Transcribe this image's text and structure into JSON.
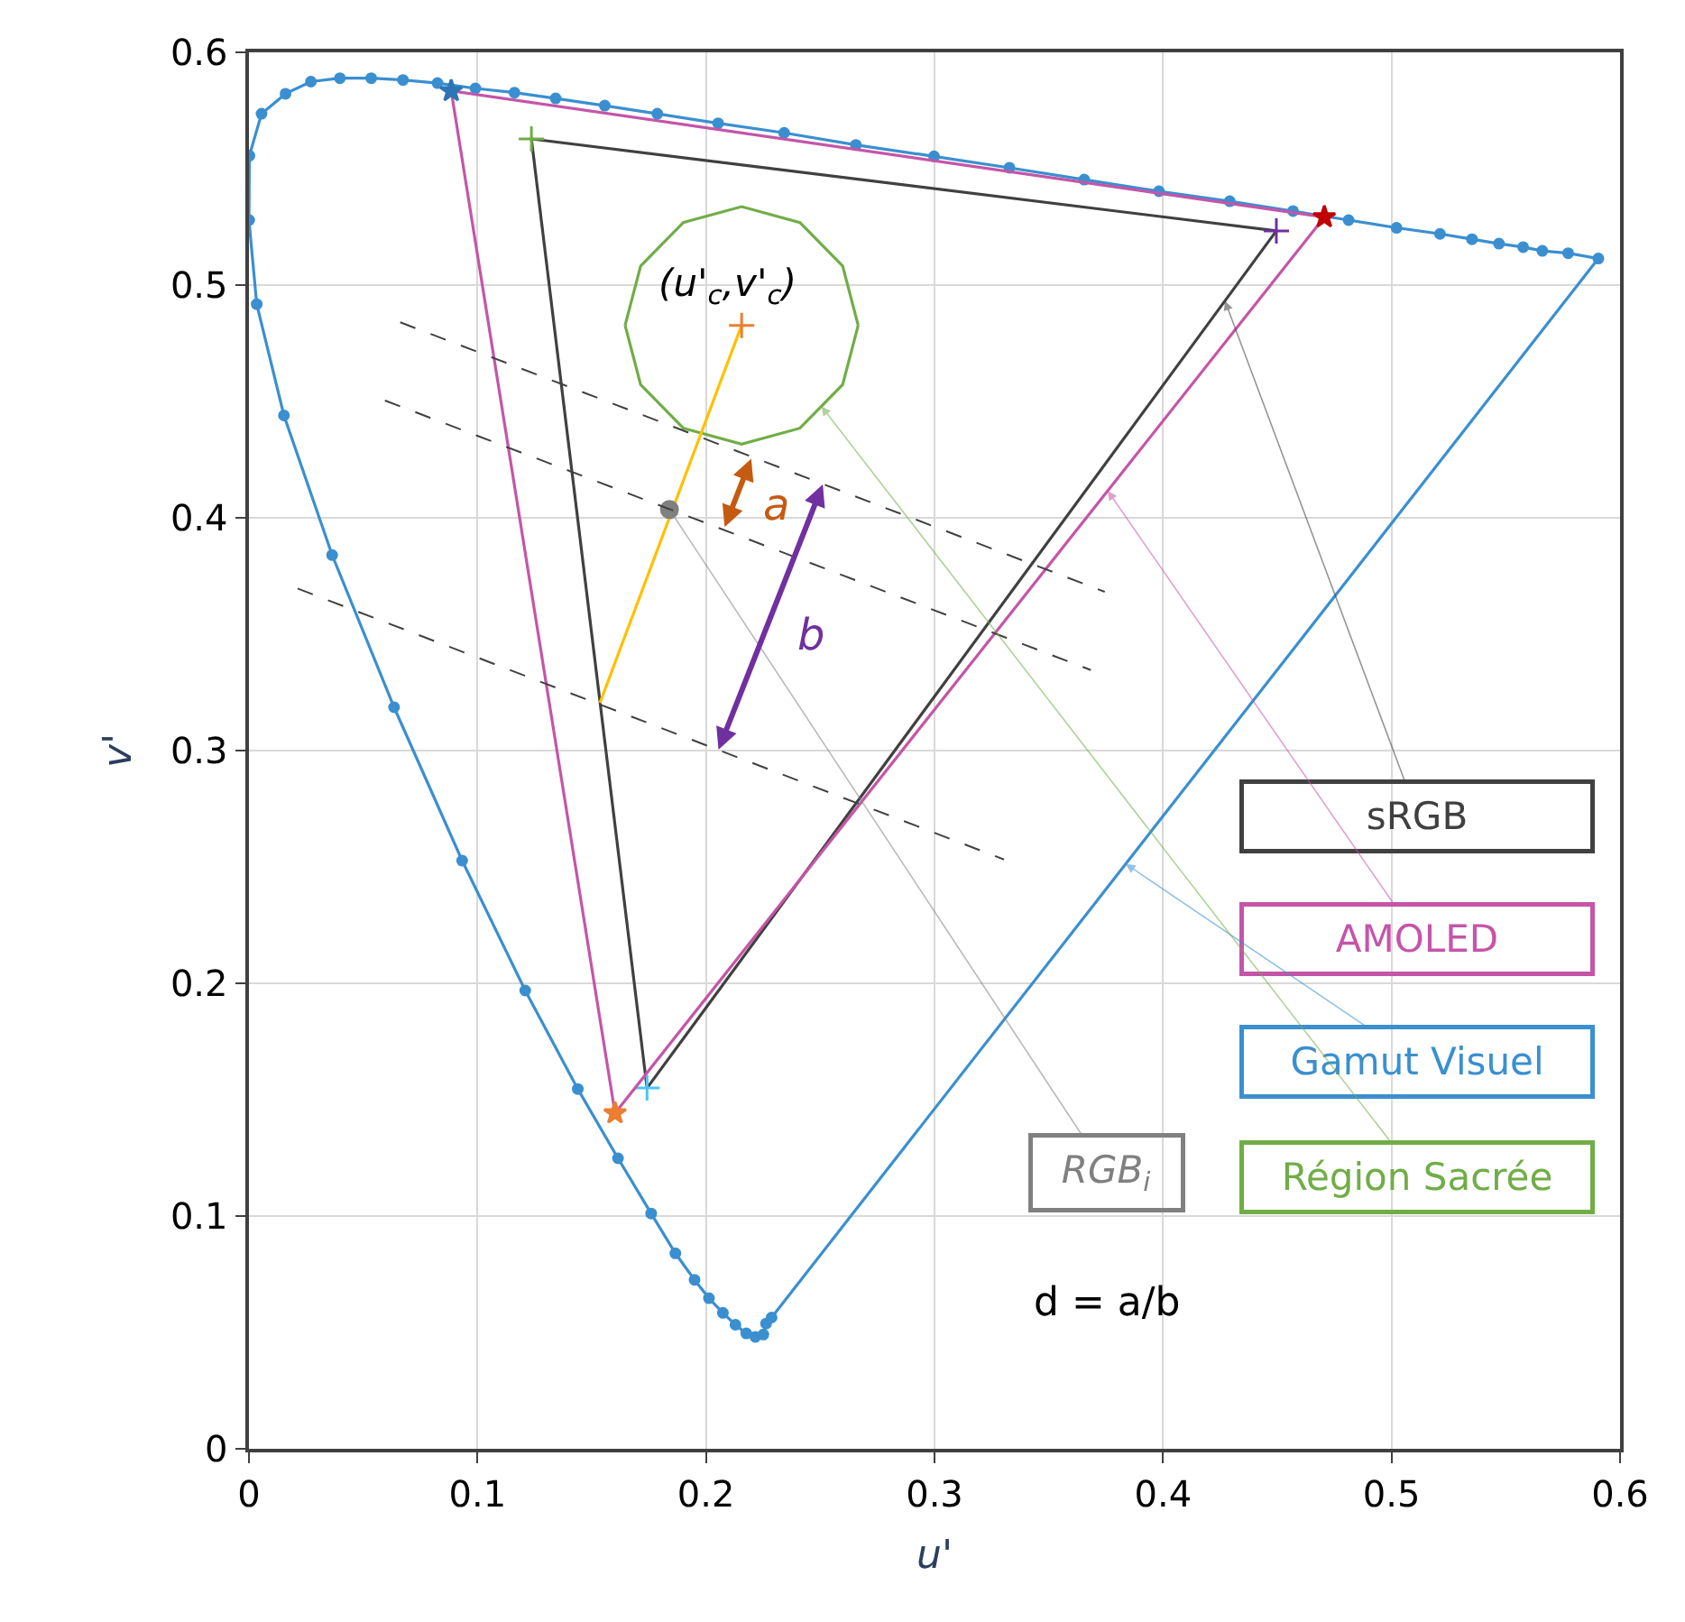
{
  "chart_data": {
    "type": "line",
    "xlabel": "u'",
    "ylabel": "v'",
    "xlim": [
      0,
      0.6
    ],
    "ylim": [
      0,
      0.6
    ],
    "xticks": [
      0,
      0.1,
      0.2,
      0.3,
      0.4,
      0.5,
      0.6
    ],
    "yticks": [
      0,
      0.1,
      0.2,
      0.3,
      0.4,
      0.5,
      0.6
    ],
    "grid": true,
    "series": [
      {
        "color": "#3a8fd0",
        "marker": "circle",
        "x": [
          0.5905,
          0.5773,
          0.566,
          0.5576,
          0.547,
          0.5352,
          0.5212,
          0.5022,
          0.4812,
          0.4569,
          0.4292,
          0.3982,
          0.3655,
          0.3328,
          0.2998,
          0.2656,
          0.2342,
          0.2053,
          0.1787,
          0.1557,
          0.1342,
          0.1162,
          0.0991,
          0.0825,
          0.0674,
          0.0535,
          0.0398,
          0.0271,
          0.016,
          0.0055,
          0.0002,
          0.0
        ],
        "values": [
          0.5114,
          0.5137,
          0.5147,
          0.5163,
          0.5178,
          0.5197,
          0.522,
          0.5246,
          0.5279,
          0.5318,
          0.536,
          0.5403,
          0.5453,
          0.5504,
          0.5553,
          0.5602,
          0.5654,
          0.5695,
          0.5736,
          0.5771,
          0.5802,
          0.5827,
          0.5845,
          0.5868,
          0.5881,
          0.5889,
          0.5889,
          0.5874,
          0.5822,
          0.5736,
          0.5556,
          0.5279
        ]
      },
      {
        "color": "#3a8fd0",
        "marker": "circle",
        "x": [
          0.0,
          0.0034,
          0.0153,
          0.0364,
          0.0635,
          0.0933,
          0.1209,
          0.1439,
          0.1615,
          0.176,
          0.1866,
          0.195,
          0.2013,
          0.2074,
          0.2129,
          0.2176,
          0.2216,
          0.2251,
          0.2263,
          0.2287
        ],
        "values": [
          0.5279,
          0.4918,
          0.444,
          0.384,
          0.3186,
          0.2527,
          0.1969,
          0.1546,
          0.1248,
          0.1011,
          0.084,
          0.0726,
          0.0647,
          0.0584,
          0.0533,
          0.0496,
          0.0481,
          0.0491,
          0.0538,
          0.0564
        ]
      },
      {
        "color": "#3a8fd0",
        "x": [
          0.2287,
          0.5905
        ],
        "values": [
          0.0564,
          0.5114
        ]
      },
      {
        "color": "#404040",
        "x": [
          0.1236,
          0.4496
        ],
        "values": [
          0.5628,
          0.5233
        ]
      },
      {
        "color": "#404040",
        "x": [
          0.1742,
          0.4496
        ],
        "values": [
          0.155,
          0.5233
        ]
      },
      {
        "color": "#404040",
        "x": [
          0.1236,
          0.1742
        ],
        "values": [
          0.5628,
          0.155
        ]
      },
      {
        "type": "scatter",
        "color": "#404040",
        "marker": "cross",
        "x": [
          0.1236,
          0.4496,
          0.1742
        ],
        "values": [
          0.5628,
          0.5233,
          0.155
        ],
        "colors": [
          "#70ad47",
          "#7030a0",
          "#4fc3f7"
        ]
      },
      {
        "color": "#c455a8",
        "x": [
          0.0885,
          0.4706
        ],
        "values": [
          0.5834,
          0.5292
        ]
      },
      {
        "color": "#c455a8",
        "x": [
          0.1602,
          0.4706
        ],
        "values": [
          0.1442,
          0.5292
        ]
      },
      {
        "color": "#c455a8",
        "x": [
          0.0885,
          0.1602
        ],
        "values": [
          0.5834,
          0.1442
        ]
      },
      {
        "type": "scatter",
        "color": "#c455a8",
        "marker": "star",
        "x": [
          0.0885,
          0.4706,
          0.1602
        ],
        "values": [
          0.5834,
          0.5292,
          0.1442
        ],
        "colors": [
          "#2e75b6",
          "#c00000",
          "#ed7d31"
        ]
      },
      {
        "color": "#70ad47",
        "x": [
          0.1646,
          0.1714,
          0.1901,
          0.2156,
          0.2411,
          0.2598,
          0.2666
        ],
        "values": [
          0.4827,
          0.5082,
          0.5269,
          0.5337,
          0.5269,
          0.5082,
          0.4827
        ]
      },
      {
        "color": "#70ad47",
        "x": [
          0.1646,
          0.1714,
          0.1901,
          0.2156,
          0.2411,
          0.2598,
          0.2666
        ],
        "values": [
          0.4827,
          0.4572,
          0.4385,
          0.4317,
          0.4385,
          0.4572,
          0.4827
        ]
      },
      {
        "color": "#ffc000",
        "x": [
          0.1536,
          0.2156
        ],
        "values": [
          0.3205,
          0.4827
        ]
      },
      {
        "type": "scatter",
        "color": "#ed7d31",
        "marker": "cross",
        "x": [
          0.2156
        ],
        "values": [
          0.4827
        ]
      },
      {
        "type": "scatter",
        "color": "#808080",
        "marker": "circle",
        "x": [
          0.184
        ],
        "values": [
          0.4036
        ]
      },
      {
        "color": "#404040",
        "line_style": "dashed",
        "x": [
          0.0662,
          0.3745
        ],
        "values": [
          0.484,
          0.3682
        ]
      },
      {
        "color": "#404040",
        "line_style": "dashed",
        "x": [
          0.0595,
          0.3684
        ],
        "values": [
          0.4504,
          0.3346
        ]
      },
      {
        "color": "#404040",
        "line_style": "dashed",
        "x": [
          0.0213,
          0.3304
        ],
        "values": [
          0.3696,
          0.2532
        ]
      }
    ],
    "annotations": [
      {
        "text": "sRGB",
        "x": 0.4271,
        "y": 0.4932
      },
      {
        "text": "AMOLED",
        "x": 0.3758,
        "y": 0.4116
      },
      {
        "text": "Gamut Visuel",
        "x": 0.3837,
        "y": 0.2513
      },
      {
        "text": "Région Sacrée",
        "x": 0.2505,
        "y": 0.4479
      },
      {
        "text": "RGB$_{i}$",
        "x": 0.184,
        "y": 0.4036
      },
      {
        "text": "(u'$_{c}$,v'$_{c}$)",
        "x": 0.2156,
        "y": 0.4827
      },
      {
        "text": "a",
        "x": 0.2198,
        "y": 0.4254
      },
      {
        "text": "b",
        "x": 0.2511,
        "y": 0.4143
      },
      "d = a/b"
    ]
  }
}
